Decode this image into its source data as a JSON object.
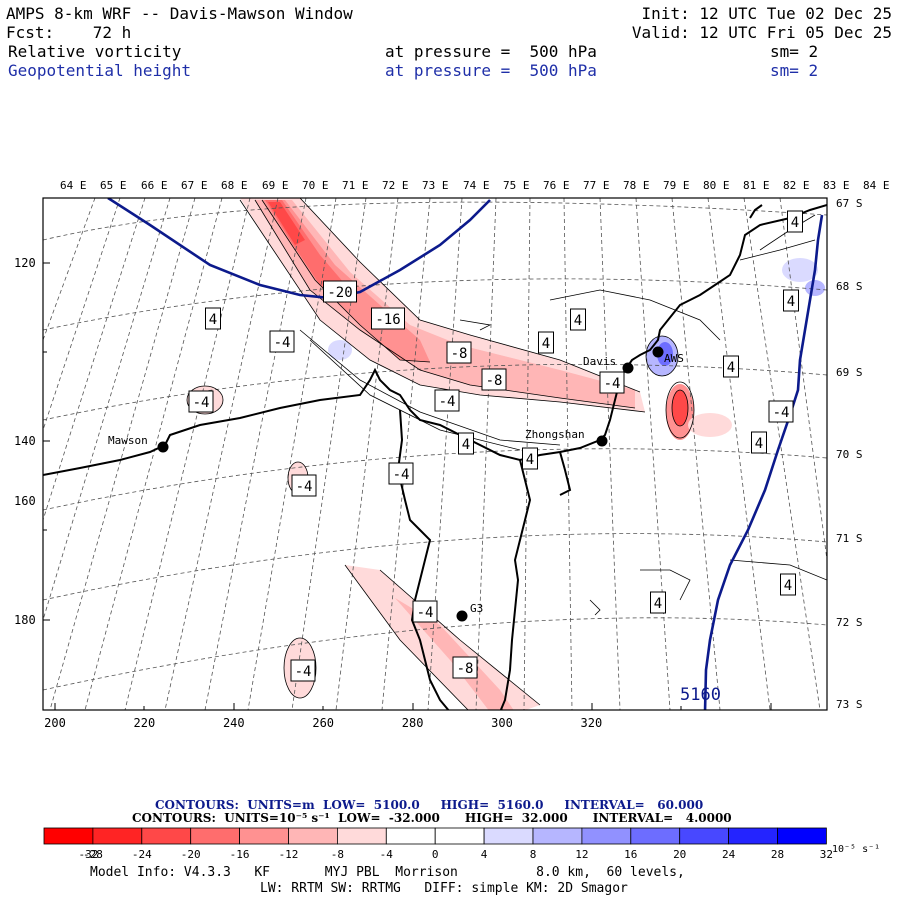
{
  "header": {
    "title": "AMPS 8-km WRF -- Davis-Mawson Window",
    "forecast": "Fcst:    72 h",
    "init": "Init: 12 UTC Tue 02 Dec 25",
    "valid": "Valid: 12 UTC Fri 05 Dec 25",
    "field1_name": "Relative vorticity",
    "field1_level": "at pressure =  500 hPa",
    "field1_sm": "sm= 2",
    "field2_name": "Geopotential height",
    "field2_level": "at pressure =  500 hPa",
    "field2_sm": "sm= 2"
  },
  "map": {
    "top_lon_labels": [
      "64 E",
      "65 E",
      "66 E",
      "67 E",
      "68 E",
      "69 E",
      "70 E",
      "71 E",
      "72 E",
      "73 E",
      "74 E",
      "75 E",
      "76 E",
      "77 E",
      "78 E",
      "79 E",
      "80 E",
      "81 E",
      "82 E",
      "83 E",
      "84 E"
    ],
    "right_lat_labels": [
      "67 S",
      "68 S",
      "69 S",
      "70 S",
      "71 S",
      "72 S",
      "73 S"
    ],
    "left_y_ticks": [
      "120",
      "140",
      "160",
      "180"
    ],
    "bottom_x_ticks": [
      "200",
      "220",
      "240",
      "260",
      "280",
      "300",
      "320"
    ],
    "stations": [
      "Mawson",
      "Davis",
      "Zhongshan",
      "G3",
      "AWS"
    ],
    "contour_labels": [
      "-20",
      "-16",
      "-8",
      "-8",
      "-4",
      "-4",
      "-4",
      "-4",
      "-4",
      "-4",
      "4",
      "4",
      "4",
      "4",
      "4",
      "4",
      "4",
      "4",
      "4",
      "4",
      "4",
      "-8",
      "-4",
      "-4",
      "-4"
    ],
    "height_label": "5160"
  },
  "contour_info": {
    "line1": "CONTOURS:  UNITS=m  LOW=  5100.0     HIGH=  5160.0     INTERVAL=   60.000",
    "line2": "CONTOURS:  UNITS=10⁻⁵ s⁻¹  LOW=  -32.000      HIGH=  32.000      INTERVAL=   4.0000"
  },
  "colorbar": {
    "colors": [
      "#ff0000",
      "#ff2424",
      "#ff4848",
      "#ff6d6d",
      "#ff9191",
      "#ffb6b6",
      "#ffdada",
      "#ffffff",
      "#ffffff",
      "#dadaff",
      "#b6b6ff",
      "#9191ff",
      "#6d6dff",
      "#4848ff",
      "#2424ff",
      "#0000ff"
    ],
    "labels": [
      "-32",
      "-28",
      "-24",
      "-20",
      "-16",
      "-12",
      "-8",
      "-4",
      "0",
      "4",
      "8",
      "12",
      "16",
      "20",
      "24",
      "28",
      "32"
    ],
    "unit": "10⁻⁵ s⁻¹"
  },
  "model_info": {
    "line1": "Model Info: V4.3.3   KF       MYJ PBL  Morrison          8.0 km,  60 levels,",
    "line2": "LW: RRTM SW: RRTMG   DIFF: simple KM: 2D Smagor"
  }
}
